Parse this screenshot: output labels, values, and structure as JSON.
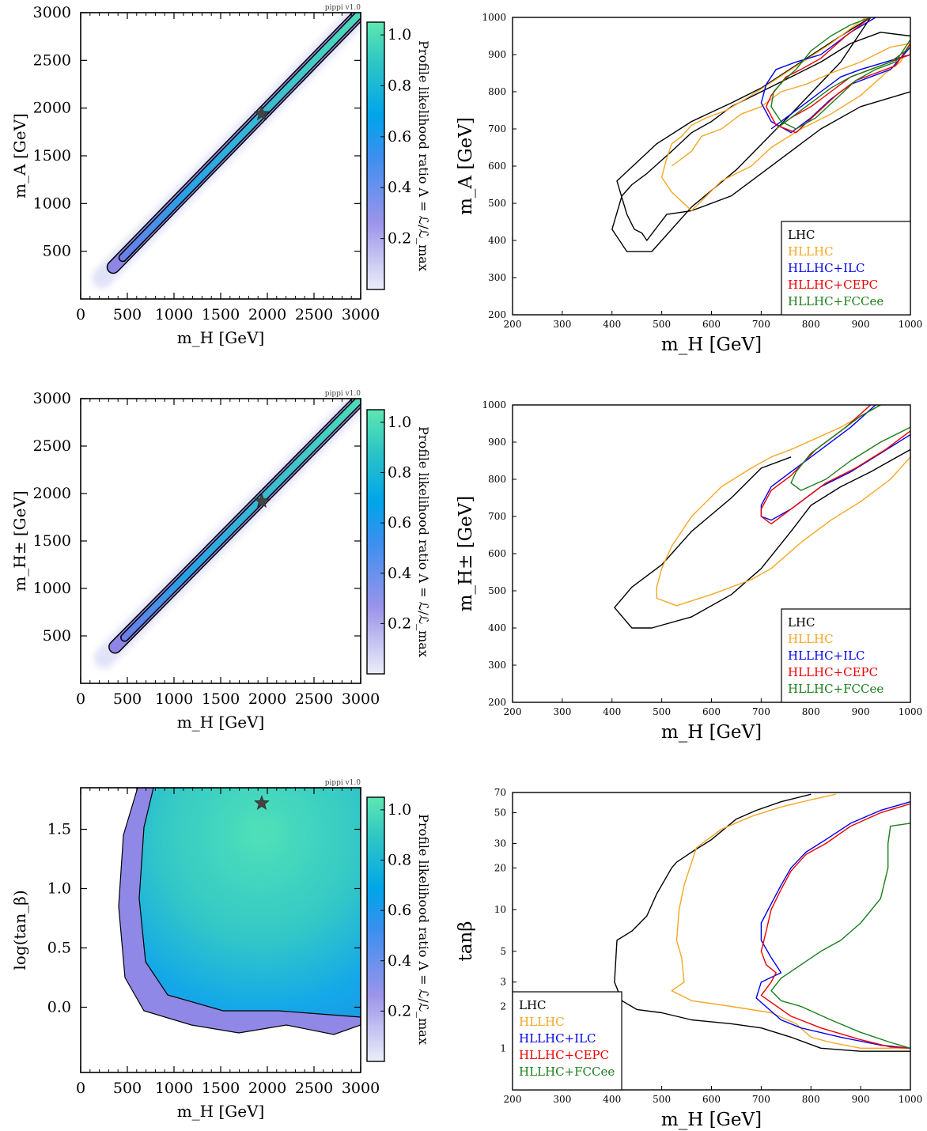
{
  "panels_left": [
    {
      "id": "mA_vs_mH",
      "xlabel": "m_H [GeV]",
      "ylabel": "m_A [GeV]",
      "xticks": [
        "0",
        "500",
        "1000",
        "1500",
        "2000",
        "2500",
        "3000"
      ],
      "yticks": [
        "500",
        "1000",
        "1500",
        "2000",
        "2500",
        "3000"
      ],
      "cbar_label": "Profile likelihood ratio Λ = ℒ/ℒ_max",
      "cbar_ticks": [
        "0.2",
        "0.4",
        "0.6",
        "0.8",
        "1.0"
      ],
      "stamp": "pippi v1.0"
    },
    {
      "id": "mHpm_vs_mH",
      "xlabel": "m_H [GeV]",
      "ylabel": "m_H± [GeV]",
      "xticks": [
        "0",
        "500",
        "1000",
        "1500",
        "2000",
        "2500",
        "3000"
      ],
      "yticks": [
        "500",
        "1000",
        "1500",
        "2000",
        "2500",
        "3000"
      ],
      "cbar_label": "Profile likelihood ratio Λ = ℒ/ℒ_max",
      "cbar_ticks": [
        "0.2",
        "0.4",
        "0.6",
        "0.8",
        "1.0"
      ],
      "stamp": "pippi v1.0"
    },
    {
      "id": "logtanb_vs_mH",
      "xlabel": "m_H [GeV]",
      "ylabel": "log(tan_β)",
      "xticks": [
        "0",
        "500",
        "1000",
        "1500",
        "2000",
        "2500",
        "3000"
      ],
      "yticks": [
        "0.0",
        "0.5",
        "1.0",
        "1.5"
      ],
      "cbar_label": "Profile likelihood ratio Λ = ℒ/ℒ_max",
      "cbar_ticks": [
        "0.2",
        "0.4",
        "0.6",
        "0.8",
        "1.0"
      ],
      "stamp": "pippi v1.0"
    }
  ],
  "panels_right": [
    {
      "id": "mA_zoom",
      "xlabel": "m_H [GeV]",
      "ylabel": "m_A [GeV]",
      "xticks": [
        "200",
        "300",
        "400",
        "500",
        "600",
        "700",
        "800",
        "900",
        "1000"
      ],
      "yticks": [
        "200",
        "300",
        "400",
        "500",
        "600",
        "700",
        "800",
        "900",
        "1000"
      ]
    },
    {
      "id": "mHpm_zoom",
      "xlabel": "m_H [GeV]",
      "ylabel": "m_H± [GeV]",
      "xticks": [
        "200",
        "300",
        "400",
        "500",
        "600",
        "700",
        "800",
        "900",
        "1000"
      ],
      "yticks": [
        "200",
        "300",
        "400",
        "500",
        "600",
        "700",
        "800",
        "900",
        "1000"
      ]
    },
    {
      "id": "tanb_zoom",
      "xlabel": "m_H [GeV]",
      "ylabel": "tanβ",
      "xticks": [
        "200",
        "300",
        "400",
        "500",
        "600",
        "700",
        "800",
        "900",
        "1000"
      ],
      "yticks": [
        "1",
        "2",
        "3",
        "5",
        "10",
        "20",
        "30",
        "50",
        "70"
      ]
    }
  ],
  "legend": [
    {
      "name": "LHC",
      "color": "#000000"
    },
    {
      "name": "HLLHC",
      "color": "#f5a623"
    },
    {
      "name": "HLLHC+ILC",
      "color": "#0000ee"
    },
    {
      "name": "HLLHC+CEPC",
      "color": "#ee0000"
    },
    {
      "name": "HLLHC+FCCee",
      "color": "#1a7f1a"
    }
  ],
  "colormap": [
    "#e8eaf8",
    "#8f86e8",
    "#00a2ee",
    "#35d3b6",
    "#5ee6b0"
  ],
  "chart_data": [
    {
      "type": "heatmap",
      "title": "",
      "xlabel": "m_H [GeV]",
      "ylabel": "m_A [GeV]",
      "xlim": [
        0,
        3000
      ],
      "ylim": [
        0,
        3000
      ],
      "description_series": [
        {
          "name": "best-fit point",
          "x": [
            1940
          ],
          "y": [
            1940
          ]
        },
        {
          "name": "band ridge",
          "x": [
            400,
            3000
          ],
          "y": [
            400,
            3000
          ]
        }
      ],
      "colorbar": {
        "label": "Profile likelihood ratio Λ = ℒ/ℒ_max",
        "range": [
          0,
          1
        ]
      }
    },
    {
      "type": "heatmap",
      "xlabel": "m_H [GeV]",
      "ylabel": "m_H± [GeV]",
      "xlim": [
        0,
        3000
      ],
      "ylim": [
        0,
        3000
      ],
      "description_series": [
        {
          "name": "best-fit point",
          "x": [
            1940
          ],
          "y": [
            1920
          ]
        },
        {
          "name": "band ridge",
          "x": [
            420,
            3000
          ],
          "y": [
            450,
            3000
          ]
        }
      ],
      "colorbar": {
        "label": "Profile likelihood ratio Λ = ℒ/ℒ_max",
        "range": [
          0,
          1
        ]
      }
    },
    {
      "type": "heatmap",
      "xlabel": "m_H [GeV]",
      "ylabel": "log(tan_β)",
      "xlim": [
        0,
        3000
      ],
      "ylim": [
        -0.55,
        1.85
      ],
      "description_series": [
        {
          "name": "best-fit point",
          "x": [
            1940
          ],
          "y": [
            1.72
          ]
        }
      ],
      "colorbar": {
        "label": "Profile likelihood ratio Λ = ℒ/ℒ_max",
        "range": [
          0,
          1
        ]
      }
    },
    {
      "type": "line",
      "xlabel": "m_H [GeV]",
      "ylabel": "m_A [GeV]",
      "xlim": [
        200,
        1000
      ],
      "ylim": [
        200,
        1000
      ],
      "series": [
        {
          "name": "LHC",
          "x": [
            920,
            860,
            780,
            700,
            640,
            560,
            490,
            410,
            430,
            445,
            460,
            470,
            510,
            560,
            640,
            700,
            760,
            820,
            900,
            1000,
            1000,
            940,
            880,
            820,
            760,
            700,
            640,
            600,
            560,
            520,
            470,
            440,
            420,
            400,
            430,
            480,
            560,
            650,
            760,
            860,
            920
          ],
          "y": [
            1000,
            950,
            880,
            810,
            770,
            720,
            660,
            560,
            470,
            430,
            420,
            400,
            470,
            480,
            520,
            580,
            640,
            700,
            760,
            800,
            950,
            960,
            930,
            880,
            840,
            800,
            760,
            720,
            690,
            640,
            580,
            550,
            520,
            430,
            370,
            370,
            490,
            590,
            740,
            880,
            1000
          ]
        },
        {
          "name": "HLLHC",
          "x": [
            910,
            840,
            760,
            680,
            630,
            590,
            560,
            540,
            520,
            510,
            500,
            520,
            560,
            620,
            680,
            720,
            780,
            840,
            900,
            950,
            980,
            1000,
            960,
            900,
            840,
            790,
            740,
            700,
            660,
            620,
            580,
            560,
            520
          ],
          "y": [
            1000,
            930,
            860,
            790,
            750,
            730,
            710,
            680,
            660,
            620,
            570,
            530,
            480,
            560,
            600,
            650,
            700,
            740,
            790,
            850,
            880,
            930,
            920,
            880,
            850,
            820,
            800,
            760,
            740,
            700,
            680,
            640,
            600
          ]
        },
        {
          "name": "HLLHC+ILC",
          "x": [
            930,
            880,
            820,
            770,
            730,
            710,
            700,
            720,
            760,
            800,
            840,
            880,
            920,
            960,
            1000,
            1000,
            950,
            900,
            860,
            820,
            780,
            760,
            720
          ],
          "y": [
            1000,
            960,
            900,
            880,
            860,
            820,
            770,
            720,
            690,
            730,
            780,
            820,
            840,
            860,
            920,
            900,
            880,
            860,
            840,
            800,
            760,
            740,
            700
          ]
        },
        {
          "name": "HLLHC+CEPC",
          "x": [
            920,
            870,
            820,
            780,
            750,
            720,
            710,
            730,
            770,
            810,
            850,
            890,
            930,
            970,
            1000,
            1000,
            960,
            920,
            880,
            840,
            800,
            760,
            730
          ],
          "y": [
            1000,
            950,
            890,
            860,
            840,
            790,
            760,
            710,
            690,
            740,
            790,
            830,
            850,
            870,
            930,
            900,
            880,
            860,
            840,
            800,
            760,
            730,
            700
          ]
        },
        {
          "name": "HLLHC+FCCee",
          "x": [
            920,
            880,
            840,
            800,
            770,
            745,
            725,
            720,
            740,
            770,
            810,
            850,
            890,
            930,
            970,
            1000,
            1000,
            960,
            920,
            880,
            840,
            800,
            770,
            750,
            730
          ],
          "y": [
            1000,
            980,
            950,
            910,
            860,
            830,
            800,
            760,
            720,
            700,
            730,
            780,
            830,
            860,
            880,
            940,
            920,
            880,
            860,
            840,
            810,
            770,
            740,
            720,
            700
          ]
        }
      ],
      "legend_position": "bottom-right"
    },
    {
      "type": "line",
      "xlabel": "m_H [GeV]",
      "ylabel": "m_H± [GeV]",
      "xlim": [
        200,
        1000
      ],
      "ylim": [
        200,
        1000
      ],
      "series": [
        {
          "name": "LHC",
          "x": [
            760,
            700,
            640,
            560,
            500,
            440,
            405,
            440,
            480,
            560,
            640,
            700,
            760,
            800,
            860,
            920,
            1000
          ],
          "y": [
            860,
            830,
            750,
            660,
            570,
            510,
            455,
            400,
            400,
            430,
            490,
            560,
            660,
            730,
            780,
            820,
            880
          ]
        },
        {
          "name": "HLLHC",
          "x": [
            940,
            860,
            760,
            720,
            680,
            620,
            560,
            520,
            500,
            490,
            490,
            530,
            600,
            680,
            720,
            780,
            840,
            900,
            960,
            1000
          ],
          "y": [
            1000,
            940,
            880,
            860,
            830,
            780,
            700,
            620,
            560,
            510,
            480,
            460,
            490,
            530,
            560,
            630,
            690,
            740,
            800,
            860
          ]
        },
        {
          "name": "HLLHC+ILC",
          "x": [
            930,
            880,
            820,
            760,
            720,
            700,
            700,
            720,
            760,
            820,
            880,
            940,
            1000
          ],
          "y": [
            1000,
            940,
            880,
            820,
            780,
            730,
            700,
            690,
            720,
            780,
            820,
            870,
            920
          ]
        },
        {
          "name": "HLLHC+CEPC",
          "x": [
            920,
            870,
            810,
            760,
            720,
            700,
            700,
            720,
            770,
            830,
            890,
            950,
            1000
          ],
          "y": [
            1000,
            940,
            880,
            810,
            770,
            720,
            700,
            680,
            730,
            790,
            830,
            880,
            930
          ]
        },
        {
          "name": "HLLHC+FCCee",
          "x": [
            940,
            900,
            850,
            800,
            770,
            760,
            780,
            830,
            880,
            940,
            1000
          ],
          "y": [
            1000,
            970,
            920,
            870,
            820,
            790,
            770,
            800,
            850,
            900,
            940
          ]
        }
      ],
      "legend_position": "bottom-right"
    },
    {
      "type": "line",
      "xlabel": "m_H [GeV]",
      "ylabel": "tanβ",
      "xlim": [
        200,
        1000
      ],
      "ylim": [
        0.5,
        70
      ],
      "yscale": "log",
      "series": [
        {
          "name": "LHC",
          "x": [
            800,
            740,
            690,
            650,
            600,
            560,
            530,
            520,
            490,
            470,
            440,
            410,
            405,
            420,
            450,
            500,
            560,
            640,
            700,
            760,
            820,
            900,
            1000
          ],
          "y": [
            68,
            60,
            52,
            45,
            32,
            26,
            22,
            20,
            13,
            9,
            7,
            6,
            3,
            2.2,
            1.9,
            1.8,
            1.6,
            1.5,
            1.4,
            1.2,
            1.0,
            0.95,
            0.95
          ]
        },
        {
          "name": "HLLHC",
          "x": [
            850,
            800,
            740,
            680,
            620,
            570,
            545,
            535,
            530,
            540,
            545,
            520,
            560,
            640,
            720,
            770,
            800,
            840,
            900,
            1000
          ],
          "y": [
            68,
            62,
            55,
            47,
            38,
            28,
            15,
            10,
            6,
            4.5,
            3,
            2.6,
            2.2,
            2.0,
            1.8,
            1.5,
            1.2,
            1.1,
            1.0,
            1.0
          ]
        },
        {
          "name": "HLLHC+ILC",
          "x": [
            1000,
            940,
            880,
            830,
            790,
            760,
            740,
            720,
            700,
            700,
            720,
            740,
            700,
            690,
            740,
            780,
            860,
            940,
            1000
          ],
          "y": [
            60,
            52,
            42,
            32,
            26,
            20,
            15,
            11,
            8,
            6,
            4.5,
            3.5,
            3,
            2.3,
            1.6,
            1.4,
            1.2,
            1.05,
            1.0
          ]
        },
        {
          "name": "HLLHC+CEPC",
          "x": [
            1000,
            940,
            880,
            830,
            790,
            760,
            740,
            720,
            710,
            700,
            710,
            730,
            720,
            700,
            760,
            820,
            900,
            960,
            1000
          ],
          "y": [
            58,
            50,
            40,
            30,
            25,
            19,
            14,
            10,
            7,
            5,
            4,
            3.5,
            3,
            2.4,
            1.7,
            1.4,
            1.15,
            1.02,
            1.0
          ]
        },
        {
          "name": "HLLHC+FCCee",
          "x": [
            1000,
            960,
            955,
            955,
            940,
            900,
            860,
            820,
            780,
            740,
            720,
            740,
            780,
            840,
            900,
            960,
            1000
          ],
          "y": [
            42,
            40,
            30,
            20,
            12,
            8,
            6,
            5,
            4,
            3.2,
            2.6,
            2.2,
            2.0,
            1.6,
            1.3,
            1.1,
            1.0
          ]
        }
      ],
      "legend_position": "bottom-left"
    }
  ]
}
